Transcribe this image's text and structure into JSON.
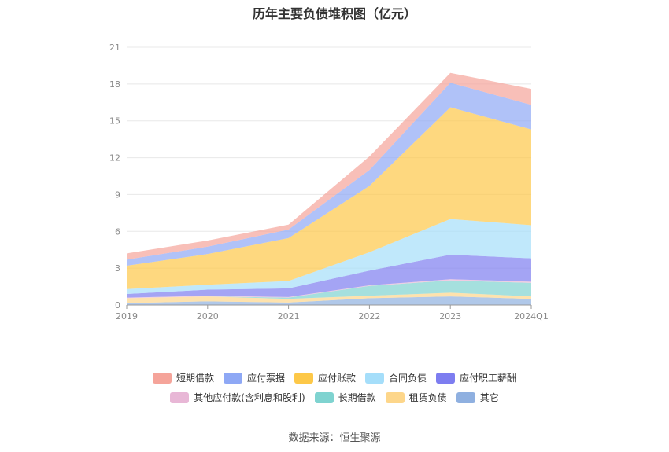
{
  "chart_data": {
    "type": "area",
    "title": "历年主要负债堆积图（亿元）",
    "categories": [
      "2019",
      "2020",
      "2021",
      "2022",
      "2023",
      "2024Q1"
    ],
    "ylim": [
      0,
      21
    ],
    "yticks": [
      0,
      3,
      6,
      9,
      12,
      15,
      18,
      21
    ],
    "ytick_labels": [
      "0",
      "3",
      "6",
      "9",
      "12",
      "15",
      "18",
      "21"
    ],
    "xlabel": "",
    "ylabel": "",
    "grid": true,
    "legend_position": "bottom",
    "stack_order": [
      "其它",
      "租赁负债",
      "长期借款",
      "其他应付款(含利息和股利)",
      "应付职工薪酬",
      "合同负债",
      "应付账款",
      "应付票据",
      "短期借款"
    ],
    "series": [
      {
        "name": "短期借款",
        "color": "#f5a49a",
        "values": [
          0.5,
          0.5,
          0.4,
          1.1,
          0.8,
          1.3
        ]
      },
      {
        "name": "应付票据",
        "color": "#8ea8f5",
        "values": [
          0.5,
          0.6,
          0.7,
          1.3,
          2.0,
          2.0
        ]
      },
      {
        "name": "应付账款",
        "color": "#fdc848",
        "values": [
          1.9,
          2.5,
          3.5,
          5.4,
          9.1,
          7.8
        ]
      },
      {
        "name": "合同负债",
        "color": "#a5defa",
        "values": [
          0.4,
          0.4,
          0.6,
          1.5,
          2.9,
          2.7
        ]
      },
      {
        "name": "应付职工薪酬",
        "color": "#7d7df0",
        "values": [
          0.3,
          0.5,
          0.7,
          1.2,
          2.0,
          1.9
        ]
      },
      {
        "name": "其他应付款(含利息和股利)",
        "color": "#e8b7d6",
        "values": [
          0.05,
          0.05,
          0.05,
          0.05,
          0.1,
          0.1
        ]
      },
      {
        "name": "长期借款",
        "color": "#7fd3d0",
        "values": [
          0.0,
          0.0,
          0.1,
          0.8,
          1.0,
          1.1
        ]
      },
      {
        "name": "租赁负债",
        "color": "#fdd68a",
        "values": [
          0.4,
          0.4,
          0.3,
          0.2,
          0.3,
          0.2
        ]
      },
      {
        "name": "其它",
        "color": "#8fb0e0",
        "values": [
          0.15,
          0.3,
          0.2,
          0.55,
          0.7,
          0.5
        ]
      }
    ]
  },
  "legend": {
    "row1": [
      "短期借款",
      "应付票据",
      "应付账款",
      "合同负债",
      "应付职工薪酬"
    ],
    "row2": [
      "其他应付款(含利息和股利)",
      "长期借款",
      "租赁负债",
      "其它"
    ]
  },
  "source": "数据来源：恒生聚源"
}
